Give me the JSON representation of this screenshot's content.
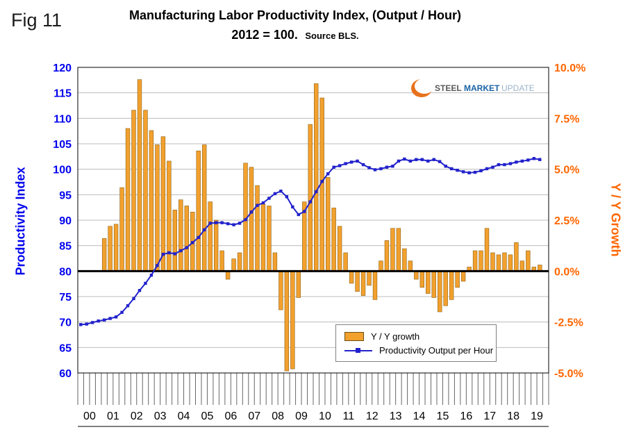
{
  "figure_label": "Fig 11",
  "title_line1": "Manufacturing Labor Productivity Index, (Output / Hour)",
  "title_line2_main": "2012 = 100.",
  "title_line2_sub": "Source BLS.",
  "logo": {
    "steel": "STEEL",
    "market": "MARKET",
    "update": "UPDATE"
  },
  "chart_data": {
    "type": "combo",
    "points_per_year": 4,
    "years": [
      "00",
      "01",
      "02",
      "03",
      "04",
      "05",
      "06",
      "07",
      "08",
      "09",
      "10",
      "11",
      "12",
      "13",
      "14",
      "15",
      "16",
      "17",
      "18",
      "19"
    ],
    "left_axis": {
      "title": "Productivity Index",
      "min": 60,
      "max": 120,
      "step": 5,
      "color": "#0000EE",
      "tick_values": [
        120,
        115,
        110,
        105,
        100,
        95,
        90,
        85,
        80,
        75,
        70,
        65,
        60
      ],
      "tick_labels": [
        "120",
        "115",
        "110",
        "105",
        "100",
        "95",
        "90",
        "85",
        "80",
        "75",
        "70",
        "65",
        "60"
      ]
    },
    "right_axis": {
      "title": "Y / Y Growth",
      "min": -5,
      "max": 10,
      "color": "#FF6600",
      "tick_values": [
        10,
        7.5,
        5,
        2.5,
        0,
        -2.5,
        -5
      ],
      "tick_labels": [
        "10.0%",
        "7.5%",
        "5.0%",
        "2.5%",
        "0.0%",
        "-2.5%",
        "-5.0%"
      ]
    },
    "zero_baseline": {
      "left_value": 80,
      "right_value": 0
    },
    "grid": true,
    "legend_position": "bottom-center",
    "series": [
      {
        "name": "Y / Y growth",
        "type": "bar",
        "axis": "right",
        "color": "#F2A02E",
        "border_color": "#8C6418",
        "values": [
          null,
          null,
          null,
          null,
          1.6,
          2.2,
          2.3,
          4.1,
          7.0,
          7.9,
          9.4,
          7.9,
          6.9,
          6.2,
          6.6,
          5.4,
          3.0,
          3.5,
          3.2,
          2.9,
          5.9,
          6.2,
          3.4,
          2.5,
          1.0,
          -0.4,
          0.6,
          0.9,
          5.3,
          5.1,
          4.2,
          3.3,
          3.2,
          0.9,
          -1.9,
          -4.9,
          -4.8,
          -1.3,
          3.4,
          7.2,
          9.2,
          8.5,
          4.6,
          3.1,
          2.2,
          0.9,
          -0.6,
          -1.0,
          -1.2,
          -0.7,
          -1.4,
          0.5,
          1.5,
          2.1,
          2.1,
          1.1,
          0.5,
          -0.4,
          -0.8,
          -1.1,
          -1.3,
          -2.0,
          -1.7,
          -1.4,
          -0.8,
          -0.5,
          0.2,
          1.0,
          1.0,
          2.1,
          0.9,
          0.8,
          0.9,
          0.8,
          1.4,
          0.5,
          1.0,
          0.2,
          0.3
        ]
      },
      {
        "name": "Productivity Output per Hour",
        "type": "line",
        "axis": "left",
        "color": "#2222CC",
        "marker": "square",
        "values": [
          69.5,
          69.6,
          69.9,
          70.2,
          70.4,
          70.7,
          71.0,
          71.9,
          73.2,
          74.6,
          76.2,
          77.6,
          79.2,
          81.1,
          83.3,
          83.6,
          83.4,
          84.0,
          84.6,
          85.6,
          86.6,
          88.1,
          89.4,
          89.5,
          89.5,
          89.3,
          89.1,
          89.4,
          90.1,
          91.6,
          92.9,
          93.4,
          94.3,
          95.2,
          95.7,
          94.6,
          92.6,
          91.1,
          91.7,
          93.6,
          95.6,
          97.6,
          99.1,
          100.4,
          100.7,
          101.1,
          101.4,
          101.6,
          100.9,
          100.3,
          99.9,
          100.1,
          100.4,
          100.6,
          101.6,
          102.0,
          101.6,
          101.9,
          101.9,
          101.6,
          101.9,
          101.5,
          100.6,
          100.1,
          99.8,
          99.5,
          99.3,
          99.4,
          99.7,
          100.1,
          100.4,
          100.9,
          100.9,
          101.1,
          101.4,
          101.6,
          101.8,
          102.1,
          101.9
        ]
      }
    ]
  }
}
